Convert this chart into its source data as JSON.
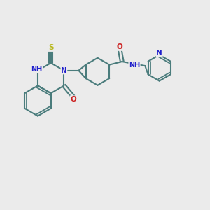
{
  "background_color": "#ebebeb",
  "bond_color": "#4a7c7c",
  "bond_width": 1.5,
  "atom_colors": {
    "N": "#2020cc",
    "O": "#cc2020",
    "S": "#b8b820",
    "H_label": "#888888",
    "C": "#4a7c7c"
  },
  "font_size_atom": 7.5,
  "font_size_label": 7.0
}
